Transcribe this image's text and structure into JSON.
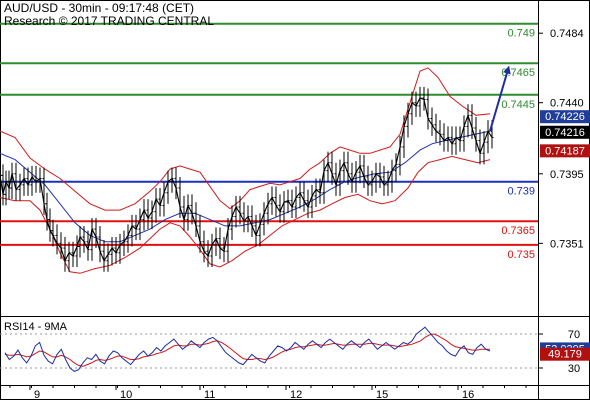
{
  "header": {
    "line1": "AUD/USD - 30min - 09:17:48 (CET)",
    "line2": "Research © 2017 TRADING CENTRAL"
  },
  "chart_data": {
    "type": "line",
    "instrument": "AUD/USD",
    "timeframe": "30min",
    "x_axis": {
      "tick_labels": [
        "9",
        "10",
        "11",
        "12",
        "15",
        "16"
      ]
    },
    "y_axis": {
      "range": [
        0.7305,
        0.7505
      ],
      "tick_labels": [
        "0.7484",
        "0.7440",
        "0.7395",
        "0.7351"
      ]
    },
    "levels": [
      {
        "value": 0.749,
        "label": "0.749",
        "color": "#2e8b2e"
      },
      {
        "value": 0.7465,
        "label": "0.7465",
        "color": "#2e8b2e"
      },
      {
        "value": 0.7445,
        "label": "0.7445",
        "color": "#2e8b2e"
      },
      {
        "value": 0.739,
        "label": "0.739",
        "color": "#1c2fbf"
      },
      {
        "value": 0.7365,
        "label": "0.7365",
        "color": "#e01010"
      },
      {
        "value": 0.735,
        "label": "0.735",
        "color": "#e01010"
      }
    ],
    "price_badges": [
      {
        "value": 0.74226,
        "label": "0.74226",
        "color": "#1f3d99"
      },
      {
        "value": 0.74216,
        "label": "0.74216",
        "color": "#000000"
      },
      {
        "value": 0.74187,
        "label": "0.74187",
        "color": "#b01010"
      }
    ],
    "price_path": [
      [
        0,
        0.7394
      ],
      [
        3,
        0.7382
      ],
      [
        6,
        0.739
      ],
      [
        9,
        0.7386
      ],
      [
        12,
        0.7395
      ],
      [
        16,
        0.7385
      ],
      [
        20,
        0.7388
      ],
      [
        24,
        0.7392
      ],
      [
        28,
        0.7388
      ],
      [
        32,
        0.7393
      ],
      [
        36,
        0.739
      ],
      [
        40,
        0.7392
      ],
      [
        44,
        0.7376
      ],
      [
        47,
        0.7366
      ],
      [
        50,
        0.7359
      ],
      [
        53,
        0.7356
      ],
      [
        57,
        0.7351
      ],
      [
        61,
        0.7348
      ],
      [
        65,
        0.734
      ],
      [
        69,
        0.7345
      ],
      [
        73,
        0.7343
      ],
      [
        77,
        0.7349
      ],
      [
        80,
        0.7355
      ],
      [
        84,
        0.7352
      ],
      [
        88,
        0.7347
      ],
      [
        92,
        0.736
      ],
      [
        96,
        0.7355
      ],
      [
        100,
        0.7346
      ],
      [
        104,
        0.734
      ],
      [
        108,
        0.7344
      ],
      [
        112,
        0.7348
      ],
      [
        116,
        0.7345
      ],
      [
        120,
        0.735
      ],
      [
        124,
        0.7352
      ],
      [
        128,
        0.7356
      ],
      [
        132,
        0.7362
      ],
      [
        136,
        0.736
      ],
      [
        140,
        0.7366
      ],
      [
        144,
        0.7372
      ],
      [
        148,
        0.7367
      ],
      [
        152,
        0.7371
      ],
      [
        156,
        0.7379
      ],
      [
        160,
        0.7375
      ],
      [
        164,
        0.7383
      ],
      [
        168,
        0.739
      ],
      [
        172,
        0.7392
      ],
      [
        176,
        0.7386
      ],
      [
        180,
        0.7374
      ],
      [
        184,
        0.7366
      ],
      [
        188,
        0.7375
      ],
      [
        192,
        0.737
      ],
      [
        196,
        0.7362
      ],
      [
        200,
        0.7352
      ],
      [
        204,
        0.7346
      ],
      [
        208,
        0.7343
      ],
      [
        212,
        0.735
      ],
      [
        216,
        0.7354
      ],
      [
        220,
        0.7348
      ],
      [
        224,
        0.7346
      ],
      [
        228,
        0.736
      ],
      [
        232,
        0.7368
      ],
      [
        236,
        0.7374
      ],
      [
        240,
        0.737
      ],
      [
        244,
        0.7365
      ],
      [
        248,
        0.7368
      ],
      [
        252,
        0.7362
      ],
      [
        256,
        0.7356
      ],
      [
        260,
        0.7363
      ],
      [
        264,
        0.737
      ],
      [
        268,
        0.7376
      ],
      [
        272,
        0.738
      ],
      [
        276,
        0.7375
      ],
      [
        280,
        0.7371
      ],
      [
        284,
        0.7377
      ],
      [
        288,
        0.7378
      ],
      [
        292,
        0.7374
      ],
      [
        296,
        0.738
      ],
      [
        300,
        0.7383
      ],
      [
        304,
        0.7378
      ],
      [
        308,
        0.7374
      ],
      [
        312,
        0.7381
      ],
      [
        316,
        0.7385
      ],
      [
        320,
        0.7383
      ],
      [
        324,
        0.7397
      ],
      [
        328,
        0.7402
      ],
      [
        332,
        0.7395
      ],
      [
        336,
        0.7388
      ],
      [
        340,
        0.7397
      ],
      [
        344,
        0.7402
      ],
      [
        348,
        0.7395
      ],
      [
        352,
        0.739
      ],
      [
        356,
        0.7396
      ],
      [
        360,
        0.74
      ],
      [
        364,
        0.7393
      ],
      [
        368,
        0.7388
      ],
      [
        372,
        0.739
      ],
      [
        376,
        0.7395
      ],
      [
        380,
        0.7393
      ],
      [
        384,
        0.7388
      ],
      [
        388,
        0.739
      ],
      [
        392,
        0.7397
      ],
      [
        396,
        0.7401
      ],
      [
        400,
        0.7412
      ],
      [
        404,
        0.7425
      ],
      [
        408,
        0.7433
      ],
      [
        412,
        0.744
      ],
      [
        416,
        0.7438
      ],
      [
        420,
        0.7443
      ],
      [
        424,
        0.7442
      ],
      [
        428,
        0.743
      ],
      [
        432,
        0.7426
      ],
      [
        436,
        0.7422
      ],
      [
        440,
        0.742
      ],
      [
        444,
        0.7416
      ],
      [
        448,
        0.7418
      ],
      [
        452,
        0.7414
      ],
      [
        456,
        0.7418
      ],
      [
        460,
        0.7416
      ],
      [
        464,
        0.7425
      ],
      [
        468,
        0.7432
      ],
      [
        472,
        0.7424
      ],
      [
        476,
        0.7416
      ],
      [
        480,
        0.7408
      ],
      [
        484,
        0.7415
      ],
      [
        488,
        0.7422
      ],
      [
        492,
        0.7418
      ]
    ],
    "bollinger_upper": [
      [
        0,
        0.7422
      ],
      [
        15,
        0.7418
      ],
      [
        30,
        0.7405
      ],
      [
        45,
        0.7398
      ],
      [
        60,
        0.7392
      ],
      [
        75,
        0.7384
      ],
      [
        90,
        0.7376
      ],
      [
        105,
        0.7372
      ],
      [
        120,
        0.7372
      ],
      [
        135,
        0.7376
      ],
      [
        150,
        0.7384
      ],
      [
        160,
        0.739
      ],
      [
        170,
        0.7398
      ],
      [
        180,
        0.74
      ],
      [
        190,
        0.7398
      ],
      [
        200,
        0.7396
      ],
      [
        210,
        0.7387
      ],
      [
        220,
        0.7378
      ],
      [
        230,
        0.7373
      ],
      [
        240,
        0.7378
      ],
      [
        250,
        0.7385
      ],
      [
        260,
        0.7387
      ],
      [
        270,
        0.7389
      ],
      [
        280,
        0.7388
      ],
      [
        290,
        0.739
      ],
      [
        300,
        0.7392
      ],
      [
        310,
        0.7398
      ],
      [
        320,
        0.7402
      ],
      [
        330,
        0.7408
      ],
      [
        340,
        0.7412
      ],
      [
        350,
        0.741
      ],
      [
        360,
        0.7408
      ],
      [
        370,
        0.7408
      ],
      [
        380,
        0.741
      ],
      [
        390,
        0.7412
      ],
      [
        400,
        0.742
      ],
      [
        410,
        0.744
      ],
      [
        420,
        0.746
      ],
      [
        428,
        0.7462
      ],
      [
        438,
        0.7456
      ],
      [
        450,
        0.7444
      ],
      [
        462,
        0.7438
      ],
      [
        476,
        0.7432
      ],
      [
        490,
        0.7433
      ]
    ],
    "bollinger_lower": [
      [
        0,
        0.738
      ],
      [
        15,
        0.7378
      ],
      [
        30,
        0.7378
      ],
      [
        40,
        0.7372
      ],
      [
        50,
        0.736
      ],
      [
        60,
        0.7345
      ],
      [
        70,
        0.7333
      ],
      [
        80,
        0.7332
      ],
      [
        95,
        0.7335
      ],
      [
        110,
        0.7337
      ],
      [
        125,
        0.7342
      ],
      [
        140,
        0.7348
      ],
      [
        150,
        0.7354
      ],
      [
        160,
        0.736
      ],
      [
        170,
        0.7364
      ],
      [
        180,
        0.7362
      ],
      [
        190,
        0.7355
      ],
      [
        200,
        0.7347
      ],
      [
        210,
        0.7338
      ],
      [
        220,
        0.7336
      ],
      [
        232,
        0.734
      ],
      [
        245,
        0.7346
      ],
      [
        258,
        0.735
      ],
      [
        270,
        0.7356
      ],
      [
        282,
        0.7362
      ],
      [
        295,
        0.7366
      ],
      [
        308,
        0.737
      ],
      [
        320,
        0.7372
      ],
      [
        332,
        0.7376
      ],
      [
        345,
        0.738
      ],
      [
        358,
        0.7382
      ],
      [
        370,
        0.7378
      ],
      [
        382,
        0.7376
      ],
      [
        395,
        0.7378
      ],
      [
        408,
        0.7386
      ],
      [
        418,
        0.7396
      ],
      [
        428,
        0.7402
      ],
      [
        440,
        0.7404
      ],
      [
        452,
        0.7406
      ],
      [
        465,
        0.7404
      ],
      [
        478,
        0.7402
      ],
      [
        490,
        0.7404
      ]
    ],
    "moving_average": [
      [
        0,
        0.7408
      ],
      [
        15,
        0.7404
      ],
      [
        30,
        0.7396
      ],
      [
        45,
        0.7388
      ],
      [
        60,
        0.7376
      ],
      [
        75,
        0.7364
      ],
      [
        90,
        0.7356
      ],
      [
        105,
        0.7352
      ],
      [
        120,
        0.7352
      ],
      [
        135,
        0.7356
      ],
      [
        150,
        0.736
      ],
      [
        165,
        0.7366
      ],
      [
        180,
        0.737
      ],
      [
        195,
        0.737
      ],
      [
        210,
        0.7366
      ],
      [
        225,
        0.7362
      ],
      [
        240,
        0.7362
      ],
      [
        255,
        0.7364
      ],
      [
        270,
        0.7366
      ],
      [
        285,
        0.737
      ],
      [
        300,
        0.7374
      ],
      [
        315,
        0.7379
      ],
      [
        330,
        0.7385
      ],
      [
        345,
        0.739
      ],
      [
        360,
        0.7393
      ],
      [
        375,
        0.7395
      ],
      [
        390,
        0.7396
      ],
      [
        405,
        0.7402
      ],
      [
        420,
        0.741
      ],
      [
        432,
        0.7414
      ],
      [
        445,
        0.7416
      ],
      [
        460,
        0.7418
      ],
      [
        475,
        0.742
      ],
      [
        490,
        0.7422
      ]
    ],
    "projection_arrow": [
      [
        490,
        0.7422
      ],
      [
        508,
        0.7461
      ]
    ],
    "rsi": {
      "label": "RSI14 - 9MA",
      "range": [
        10,
        90
      ],
      "tick_labels": [
        "70",
        "30"
      ],
      "badges": [
        {
          "value": 53.0305,
          "label": "53.0305",
          "color": "#1f3d99"
        },
        {
          "value": 49.179,
          "label": "49.179",
          "color": "#b01010"
        }
      ],
      "values": [
        48,
        40,
        44,
        51,
        42,
        36,
        44,
        56,
        60,
        45,
        38,
        35,
        46,
        52,
        40,
        30,
        26,
        28,
        36,
        42,
        40,
        46,
        38,
        35,
        44,
        50,
        48,
        42,
        38,
        34,
        40,
        46,
        50,
        44,
        48,
        54,
        50,
        56,
        60,
        64,
        58,
        52,
        56,
        62,
        58,
        54,
        60,
        64,
        66,
        62,
        55,
        48,
        44,
        40,
        36,
        34,
        40,
        46,
        42,
        38,
        36,
        44,
        50,
        56,
        54,
        50,
        54,
        60,
        56,
        52,
        58,
        62,
        58,
        54,
        60,
        64,
        60,
        56,
        52,
        58,
        62,
        58,
        54,
        60,
        64,
        58,
        52,
        56,
        60,
        56,
        52,
        56,
        60,
        58,
        62,
        70,
        74,
        78,
        72,
        66,
        60,
        56,
        50,
        46,
        44,
        52,
        56,
        48,
        46,
        54,
        58,
        52,
        50
      ],
      "ma": [
        46,
        45,
        45,
        46,
        45,
        43,
        44,
        47,
        50,
        49,
        46,
        43,
        43,
        45,
        43,
        40,
        36,
        33,
        32,
        34,
        36,
        39,
        40,
        39,
        40,
        42,
        44,
        44,
        42,
        40,
        40,
        41,
        43,
        44,
        45,
        47,
        48,
        50,
        53,
        56,
        57,
        56,
        56,
        58,
        58,
        57,
        58,
        59,
        61,
        62,
        60,
        57,
        53,
        49,
        45,
        41,
        40,
        40,
        41,
        41,
        40,
        41,
        43,
        46,
        49,
        51,
        52,
        54,
        55,
        55,
        56,
        57,
        58,
        57,
        57,
        58,
        59,
        58,
        57,
        57,
        58,
        58,
        58,
        58,
        59,
        59,
        58,
        57,
        57,
        57,
        56,
        55,
        56,
        57,
        58,
        60,
        62,
        66,
        69,
        70,
        68,
        65,
        62,
        58,
        55,
        54,
        53,
        52,
        51,
        51,
        52,
        52,
        52
      ]
    }
  }
}
